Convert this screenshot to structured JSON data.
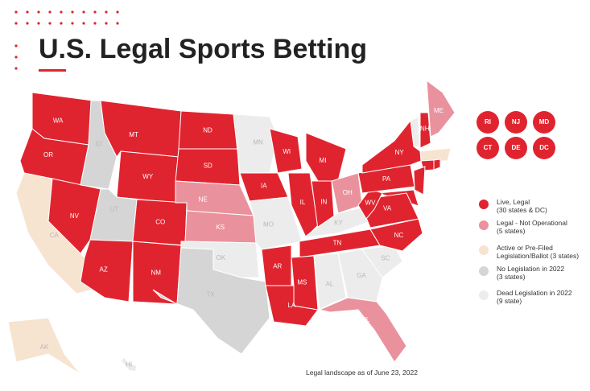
{
  "title": "U.S. Legal Sports Betting",
  "states": [
    {
      "label": "WA",
      "color": "#e0242f"
    },
    {
      "label": "OR",
      "color": "#e0242f"
    },
    {
      "label": "CA",
      "color": "#f6e4d0"
    },
    {
      "label": "NV",
      "color": "#e0242f"
    },
    {
      "label": "ID",
      "color": "#d5d5d5"
    },
    {
      "label": "MT",
      "color": "#e0242f"
    },
    {
      "label": "WY",
      "color": "#e0242f"
    },
    {
      "label": "UT",
      "color": "#d5d5d5"
    },
    {
      "label": "AZ",
      "color": "#e0242f"
    },
    {
      "label": "NM",
      "color": "#e0242f"
    },
    {
      "label": "CO",
      "color": "#e0242f"
    },
    {
      "label": "ND",
      "color": "#e0242f"
    },
    {
      "label": "SD",
      "color": "#e0242f"
    },
    {
      "label": "NE",
      "color": "#e9929d"
    },
    {
      "label": "KS",
      "color": "#e9929d"
    },
    {
      "label": "OK",
      "color": "#ececec"
    },
    {
      "label": "TX",
      "color": "#d5d5d5"
    },
    {
      "label": "MN",
      "color": "#ececec"
    },
    {
      "label": "IA",
      "color": "#e0242f"
    },
    {
      "label": "MO",
      "color": "#ececec"
    },
    {
      "label": "AR",
      "color": "#e0242f"
    },
    {
      "label": "LA",
      "color": "#e0242f"
    },
    {
      "label": "WI",
      "color": "#e0242f"
    },
    {
      "label": "IL",
      "color": "#e0242f"
    },
    {
      "label": "MI",
      "color": "#e0242f"
    },
    {
      "label": "IN",
      "color": "#e0242f"
    },
    {
      "label": "OH",
      "color": "#e9929d"
    },
    {
      "label": "KY",
      "color": "#ececec"
    },
    {
      "label": "TN",
      "color": "#e0242f"
    },
    {
      "label": "MS",
      "color": "#e0242f"
    },
    {
      "label": "AL",
      "color": "#ececec"
    },
    {
      "label": "GA",
      "color": "#ececec"
    },
    {
      "label": "FL",
      "color": "#e9929d"
    },
    {
      "label": "SC",
      "color": "#ececec"
    },
    {
      "label": "NC",
      "color": "#e0242f"
    },
    {
      "label": "VA",
      "color": "#e0242f"
    },
    {
      "label": "WV",
      "color": "#e0242f"
    },
    {
      "label": "PA",
      "color": "#e0242f"
    },
    {
      "label": "NY",
      "color": "#e0242f"
    },
    {
      "label": "NH",
      "color": "#e0242f"
    },
    {
      "label": "ME",
      "color": "#e9929d"
    },
    {
      "label": "AK",
      "color": "#f6e4d0"
    },
    {
      "label": "HI",
      "color": "#ececec"
    }
  ],
  "small_states": [
    "RI",
    "NJ",
    "MD",
    "CT",
    "DE",
    "DC"
  ],
  "legend": [
    {
      "label": "Live, Legal",
      "note": "(30 states & DC)",
      "color": "#e0242f"
    },
    {
      "label": "Legal - Not Operational",
      "note": "(5 states)",
      "color": "#e9929d"
    },
    {
      "label": "Active or Pre-Filed",
      "note": "Legislation/Ballot (3 states)",
      "color": "#f6e4d0"
    },
    {
      "label": "No Legislation in 2022",
      "note": "(3 states)",
      "color": "#d5d5d5"
    },
    {
      "label": "Dead Legislation in 2022",
      "note": "(9 state)",
      "color": "#ececec"
    }
  ],
  "footnote": "Legal landscape as of June 23, 2022"
}
